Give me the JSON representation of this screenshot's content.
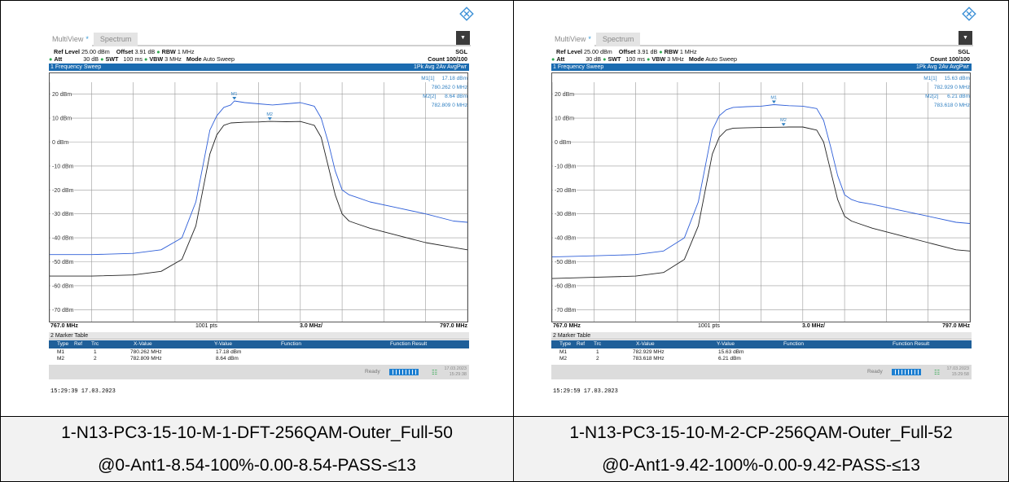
{
  "panels": [
    {
      "window": {
        "tab_multiview": "MultiView",
        "tab_star": "*",
        "tab_spectrum": "Spectrum",
        "menu_icon": "chevron-down-icon"
      },
      "settings": {
        "ref_level_label": "Ref Level",
        "ref_level": "25.00 dBm",
        "offset_label": "Offset",
        "offset": "3.91 dB",
        "rbw_label": "RBW",
        "rbw": "1 MHz",
        "mode_tag": "SGL",
        "att_label": "Att",
        "att": "30 dB",
        "swt_label": "SWT",
        "swt": "100 ms",
        "vbw_label": "VBW",
        "vbw": "3 MHz",
        "mode_label": "Mode",
        "mode": "Auto Sweep",
        "count": "Count 100/100"
      },
      "sweep": {
        "title": "1 Frequency Sweep",
        "trace_info": "1Pk Avg  2Av AvgPwr"
      },
      "markers": {
        "m1_label": "M1[1]",
        "m1_y": "17.18 dBm",
        "m1_x": "780.262 0 MHz",
        "m2_label": "M2[2]",
        "m2_y": "8.64 dBm",
        "m2_x": "782.809 0 MHz"
      },
      "axis": {
        "y_ticks": [
          "20 dBm",
          "10 dBm",
          "0 dBm",
          "-10 dBm",
          "-20 dBm",
          "-30 dBm",
          "-40 dBm",
          "-50 dBm",
          "-60 dBm",
          "-70 dBm"
        ],
        "start": "767.0 MHz",
        "points": "1001 pts",
        "span_div": "3.0 MHz/",
        "stop": "797.0 MHz"
      },
      "table": {
        "title": "2 Marker Table",
        "headers": [
          "Type",
          "Ref",
          "Trc",
          "X-Value",
          "Y-Value",
          "Function",
          "Function Result"
        ],
        "rows": [
          [
            "M1",
            "",
            "1",
            "780.262 MHz",
            "17.18 dBm"
          ],
          [
            "M2",
            "",
            "2",
            "782.809 MHz",
            "8.64 dBm"
          ]
        ]
      },
      "status": {
        "ready": "Ready",
        "date": "17.03.2023",
        "time": "15:29:38"
      },
      "timestamp": "15:29:39  17.03.2023",
      "caption_line1": "1-N13-PC3-15-10-M-1-DFT-256QAM-Outer_Full-50",
      "caption_line2": "@0-Ant1-8.54-100%-0.00-8.54-PASS-≤13",
      "chart_data": {
        "type": "line",
        "xlim": [
          767.0,
          797.0
        ],
        "ylim": [
          -75,
          25
        ],
        "series": [
          {
            "name": "1Pk Avg",
            "color": "#2f5fd8",
            "x": [
              767,
              770,
              773,
              775,
              776.5,
              777.5,
              778,
              778.5,
              779,
              779.5,
              780,
              780.262,
              781,
              782,
              783,
              784,
              785,
              786,
              786.5,
              787,
              787.5,
              788,
              788.5,
              789,
              790,
              792,
              794,
              796,
              797
            ],
            "y": [
              -47,
              -47,
              -46.5,
              -45,
              -40,
              -25,
              -10,
              5,
              11,
              14.5,
              15.5,
              17.18,
              16.5,
              16,
              15.5,
              16,
              16.5,
              15,
              10,
              0,
              -12,
              -20,
              -22,
              -23,
              -25,
              -27.5,
              -30,
              -33,
              -33.5
            ]
          },
          {
            "name": "2Av AvgPwr",
            "color": "#222222",
            "x": [
              767,
              770,
              773,
              775,
              776.5,
              777.5,
              778,
              778.5,
              779,
              779.5,
              780,
              781,
              782,
              782.809,
              784,
              785,
              786,
              786.5,
              787,
              787.5,
              788,
              788.5,
              789,
              790,
              792,
              794,
              796,
              797
            ],
            "y": [
              -56,
              -56,
              -55.5,
              -54,
              -49,
              -35,
              -20,
              -5,
              3,
              7,
              8,
              8.3,
              8.4,
              8.64,
              8.5,
              8.6,
              7,
              2,
              -10,
              -22,
              -30,
              -33,
              -34,
              -36,
              -39,
              -42,
              -44,
              -45
            ]
          }
        ]
      }
    },
    {
      "window": {
        "tab_multiview": "MultiView",
        "tab_star": "*",
        "tab_spectrum": "Spectrum",
        "menu_icon": "chevron-down-icon"
      },
      "settings": {
        "ref_level_label": "Ref Level",
        "ref_level": "25.00 dBm",
        "offset_label": "Offset",
        "offset": "3.91 dB",
        "rbw_label": "RBW",
        "rbw": "1 MHz",
        "mode_tag": "SGL",
        "att_label": "Att",
        "att": "30 dB",
        "swt_label": "SWT",
        "swt": "100 ms",
        "vbw_label": "VBW",
        "vbw": "3 MHz",
        "mode_label": "Mode",
        "mode": "Auto Sweep",
        "count": "Count 100/100"
      },
      "sweep": {
        "title": "1 Frequency Sweep",
        "trace_info": "1Pk Avg  2Av AvgPwr"
      },
      "markers": {
        "m1_label": "M1[1]",
        "m1_y": "15.63 dBm",
        "m1_x": "782.929 0 MHz",
        "m2_label": "M2[2]",
        "m2_y": "6.21 dBm",
        "m2_x": "783.618 0 MHz"
      },
      "axis": {
        "y_ticks": [
          "20 dBm",
          "10 dBm",
          "0 dBm",
          "-10 dBm",
          "-20 dBm",
          "-30 dBm",
          "-40 dBm",
          "-50 dBm",
          "-60 dBm",
          "-70 dBm"
        ],
        "start": "767.0 MHz",
        "points": "1001 pts",
        "span_div": "3.0 MHz/",
        "stop": "797.0 MHz"
      },
      "table": {
        "title": "2 Marker Table",
        "headers": [
          "Type",
          "Ref",
          "Trc",
          "X-Value",
          "Y-Value",
          "Function",
          "Function Result"
        ],
        "rows": [
          [
            "M1",
            "",
            "1",
            "782.929 MHz",
            "15.63 dBm"
          ],
          [
            "M2",
            "",
            "2",
            "783.618 MHz",
            "6.21 dBm"
          ]
        ]
      },
      "status": {
        "ready": "Ready",
        "date": "17.03.2023",
        "time": "15:29:58"
      },
      "timestamp": "15:29:59  17.03.2023",
      "caption_line1": "1-N13-PC3-15-10-M-2-CP-256QAM-Outer_Full-52",
      "caption_line2": "@0-Ant1-9.42-100%-0.00-9.42-PASS-≤13",
      "chart_data": {
        "type": "line",
        "xlim": [
          767.0,
          797.0
        ],
        "ylim": [
          -75,
          25
        ],
        "series": [
          {
            "name": "1Pk Avg",
            "color": "#2f5fd8",
            "x": [
              767,
              770,
              773,
              775,
              776.5,
              777.5,
              778,
              778.5,
              779,
              779.5,
              780,
              781,
              782,
              782.929,
              784,
              785,
              786,
              786.5,
              787,
              787.5,
              788,
              788.5,
              789,
              790,
              792,
              794,
              796,
              797
            ],
            "y": [
              -48,
              -47.5,
              -47,
              -45.5,
              -40,
              -25,
              -10,
              5,
              11,
              13.5,
              14.5,
              14.8,
              15,
              15.63,
              15.2,
              15,
              14,
              9,
              -2,
              -14,
              -22,
              -24,
              -25,
              -26,
              -28.5,
              -31,
              -33.5,
              -34
            ]
          },
          {
            "name": "2Av AvgPwr",
            "color": "#222222",
            "x": [
              767,
              770,
              773,
              775,
              776.5,
              777.5,
              778,
              778.5,
              779,
              779.5,
              780,
              781,
              782,
              783.618,
              784,
              785,
              786,
              786.5,
              787,
              787.5,
              788,
              788.5,
              789,
              790,
              792,
              794,
              796,
              797
            ],
            "y": [
              -57,
              -56.5,
              -56,
              -54.5,
              -49,
              -35,
              -20,
              -5,
              2,
              5,
              5.8,
              6,
              6.1,
              6.21,
              6.3,
              6.3,
              5,
              0,
              -12,
              -24,
              -31,
              -33,
              -34,
              -36,
              -39,
              -42,
              -45,
              -45.5
            ]
          }
        ]
      }
    }
  ]
}
